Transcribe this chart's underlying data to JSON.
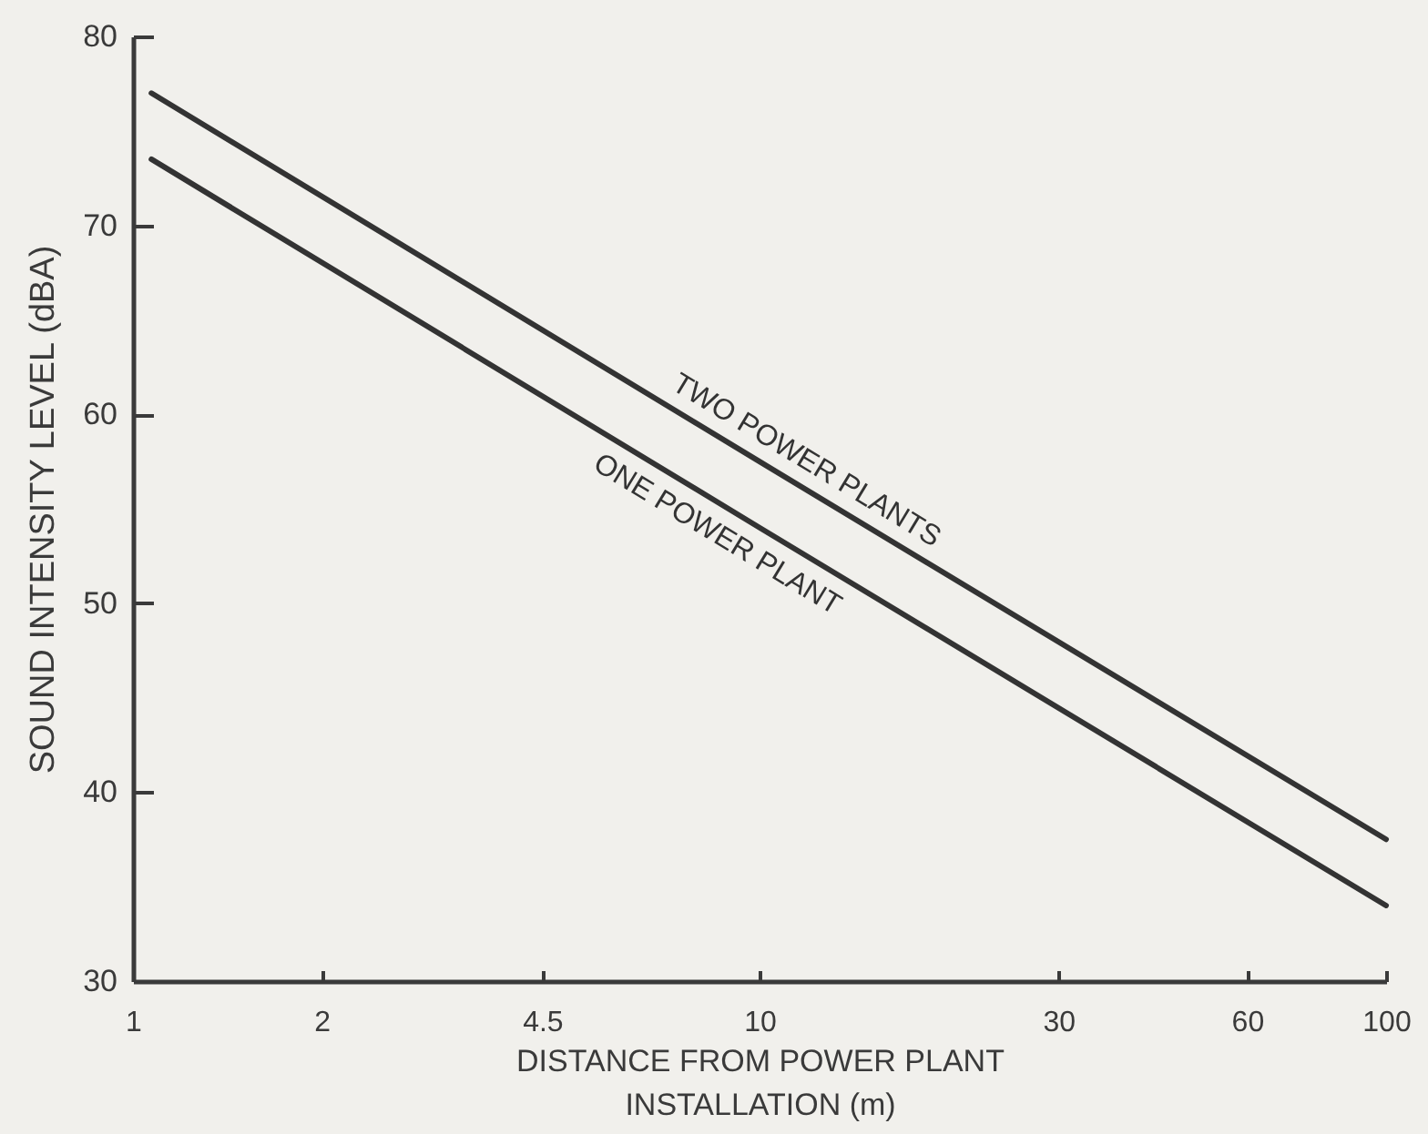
{
  "chart_data": {
    "type": "line",
    "xlabel": "DISTANCE FROM POWER PLANT\nINSTALLATION (m)",
    "ylabel": "SOUND INTENSITY LEVEL (dBA)",
    "log": "x",
    "xlim": [
      1,
      100
    ],
    "xticks": [
      1,
      2,
      4.5,
      10,
      30,
      60,
      100
    ],
    "ylim": [
      30,
      80
    ],
    "yticks": [
      30,
      40,
      50,
      60,
      70,
      80
    ],
    "series": [
      {
        "name": "TWO POWER PLANTS",
        "color": "#333333",
        "x": [
          1.07,
          10,
          100
        ],
        "values": [
          77,
          57.5,
          37.5
        ]
      },
      {
        "name": "ONE POWER PLANT",
        "color": "#333333",
        "x": [
          1.07,
          10,
          100
        ],
        "values": [
          73.5,
          54,
          34
        ]
      }
    ]
  }
}
